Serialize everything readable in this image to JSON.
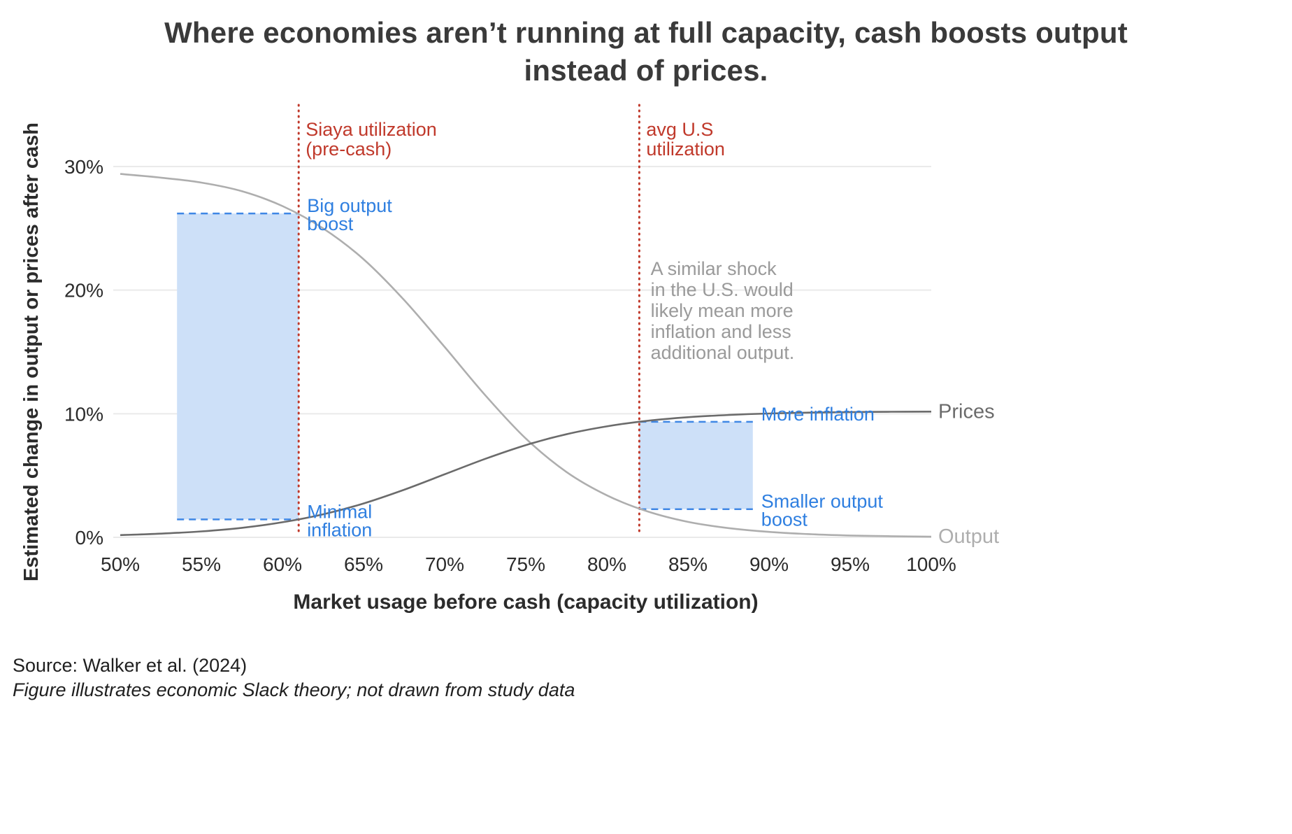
{
  "title": {
    "line1": "Where economies aren’t running at full capacity, cash boosts output",
    "line2": "instead of prices."
  },
  "source": {
    "line1": "Source: Walker et al. (2024)",
    "line2": "Figure illustrates economic Slack theory; not drawn from study data"
  },
  "colors": {
    "title_text": "#3a3a3a",
    "axis_text": "#2b2b2b",
    "gridline": "#eaeaea",
    "output_curve": "#aeaeae",
    "prices_curve": "#6b6b6b",
    "red_accent": "#c0392b",
    "blue_accent": "#2f7fe0",
    "blue_dash": "#3f87e5",
    "box_fill": "#cde0f8",
    "annotation_gray": "#9a9a9a"
  },
  "chart_data": {
    "type": "line",
    "title": "Where economies aren’t running at full capacity, cash boosts output instead of prices.",
    "xlabel": "Market usage before cash (capacity utilization)",
    "ylabel": "Estimated change in output or prices after cash",
    "xlim": [
      50,
      100
    ],
    "ylim": [
      0,
      34
    ],
    "grid": "horizontal",
    "legend_position": "curve-end-right",
    "x_tick_values": [
      50,
      55,
      60,
      65,
      70,
      75,
      80,
      85,
      90,
      95,
      100
    ],
    "x_tick_labels": [
      "50%",
      "55%",
      "60%",
      "65%",
      "70%",
      "75%",
      "80%",
      "85%",
      "90%",
      "95%",
      "100%"
    ],
    "y_tick_values": [
      0,
      10,
      20,
      30
    ],
    "y_tick_labels": [
      "0%",
      "10%",
      "20%",
      "30%"
    ],
    "x": [
      50,
      52.5,
      55,
      57.5,
      60,
      62.5,
      65,
      67.5,
      70,
      72.5,
      75,
      77.5,
      80,
      82.5,
      85,
      87.5,
      90,
      92.5,
      95,
      97.5,
      100
    ],
    "series": [
      {
        "name": "Output",
        "color": "#aeaeae",
        "values": [
          29.4,
          29.1,
          28.7,
          28.0,
          26.8,
          25.0,
          22.5,
          19.2,
          15.4,
          11.5,
          8.0,
          5.3,
          3.4,
          2.1,
          1.25,
          0.75,
          0.44,
          0.26,
          0.15,
          0.09,
          0.05
        ]
      },
      {
        "name": "Prices",
        "color": "#6b6b6b",
        "values": [
          0.18,
          0.3,
          0.48,
          0.77,
          1.22,
          1.86,
          2.74,
          3.85,
          5.1,
          6.35,
          7.46,
          8.34,
          8.98,
          9.43,
          9.72,
          9.9,
          10.02,
          10.09,
          10.13,
          10.16,
          10.17
        ]
      }
    ],
    "vlines": [
      {
        "x": 61,
        "color": "#c0392b",
        "label_lines": [
          "Siaya utilization",
          "(pre-cash)"
        ]
      },
      {
        "x": 82,
        "color": "#c0392b",
        "label_lines": [
          "avg U.S",
          "utilization"
        ]
      }
    ],
    "boxes": [
      {
        "x0": 53.5,
        "x1": 61,
        "y0": 1.45,
        "y1": 26.2,
        "top_label_lines": [
          "Big output",
          "boost"
        ],
        "bottom_label_lines": [
          "Minimal",
          "inflation"
        ]
      },
      {
        "x0": 82,
        "x1": 89,
        "y0": 2.28,
        "y1": 9.35,
        "top_label_lines": [
          "More inflation"
        ],
        "bottom_label_lines": [
          "Smaller output",
          "boost"
        ]
      }
    ],
    "annotation": {
      "lines": [
        "A similar shock",
        "in the U.S. would",
        "likely mean more",
        "inflation and less",
        "additional output."
      ],
      "anchor_x": 82.7
    }
  }
}
